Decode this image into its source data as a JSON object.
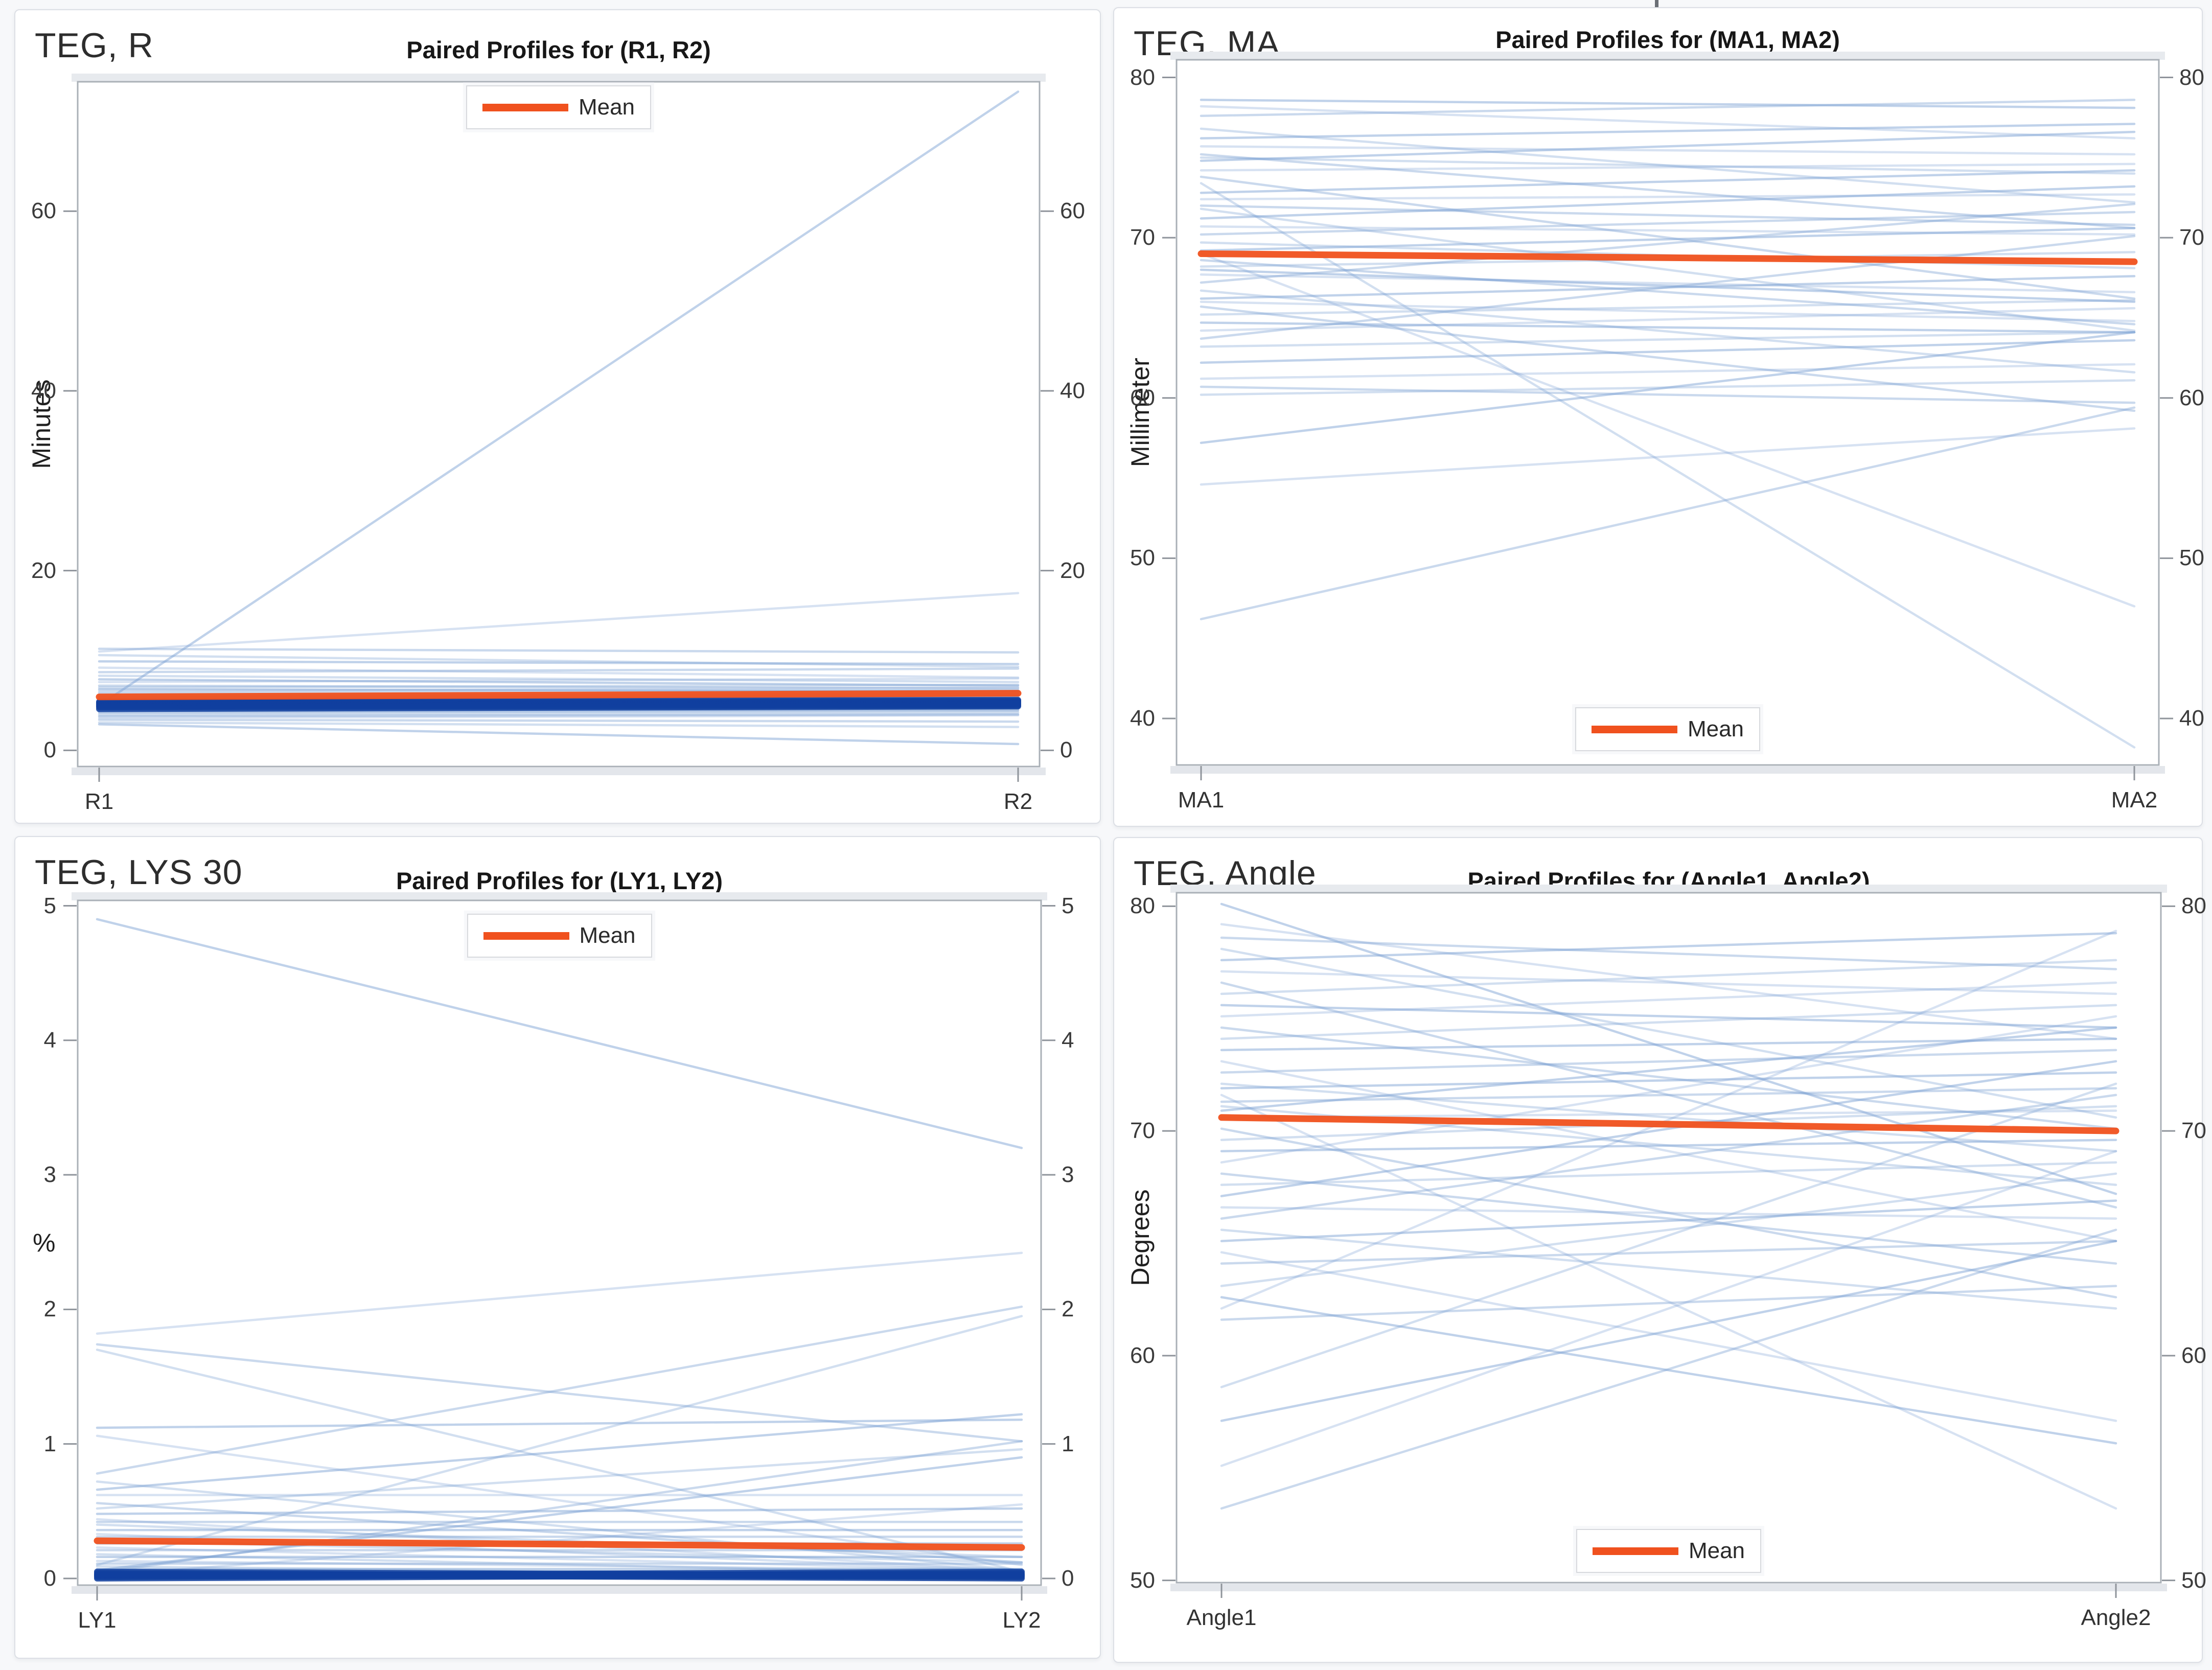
{
  "page": {
    "background": "#f7f8fa"
  },
  "colors": {
    "mean_line": "#f0511e",
    "profile_line": "#7ba0d3",
    "dense_profile_line": "#10409f",
    "frame": "#aab0b7",
    "tick": "#8f949b"
  },
  "chart_data": [
    {
      "type": "line",
      "panel_label": "TEG, R",
      "title": "Paired Profiles for (R1, R2)",
      "ylabel": "Minutes",
      "xcategories": [
        "R1",
        "R2"
      ],
      "yticks": [
        0,
        20,
        40,
        60
      ],
      "ylim": [
        -1.8,
        74.4
      ],
      "grid": false,
      "legend": {
        "label": "Mean",
        "position": "top"
      },
      "series": [
        {
          "name": "Mean",
          "values": [
            5.95,
            6.35
          ]
        }
      ],
      "profiles": [
        [
          5.0,
          73.3
        ],
        [
          11.0,
          17.5
        ],
        [
          11.3,
          10.9
        ],
        [
          10.6,
          9.3
        ],
        [
          9.9,
          9.6
        ],
        [
          9.2,
          8.1
        ],
        [
          8.7,
          9.1
        ],
        [
          8.3,
          7.6
        ],
        [
          7.9,
          7.2
        ],
        [
          7.6,
          8.0
        ],
        [
          7.2,
          6.9
        ],
        [
          7.0,
          7.3
        ],
        [
          6.8,
          6.6
        ],
        [
          6.6,
          7.0
        ],
        [
          6.4,
          6.7
        ],
        [
          6.2,
          6.4
        ],
        [
          6.0,
          6.2
        ],
        [
          5.9,
          6.4
        ],
        [
          5.8,
          6.0
        ],
        [
          5.7,
          6.1
        ],
        [
          5.6,
          5.9
        ],
        [
          5.5,
          5.7
        ],
        [
          5.4,
          5.8
        ],
        [
          5.3,
          5.6
        ],
        [
          5.2,
          5.5
        ],
        [
          5.1,
          5.3
        ],
        [
          5.0,
          5.2
        ],
        [
          4.9,
          5.1
        ],
        [
          4.8,
          5.0
        ],
        [
          4.7,
          4.9
        ],
        [
          4.6,
          4.8
        ],
        [
          4.5,
          4.7
        ],
        [
          4.4,
          4.6
        ],
        [
          4.3,
          4.5
        ],
        [
          4.2,
          4.4
        ],
        [
          4.0,
          4.2
        ],
        [
          3.8,
          4.0
        ],
        [
          3.6,
          3.9
        ],
        [
          3.4,
          3.2
        ],
        [
          3.1,
          2.6
        ],
        [
          2.9,
          0.7
        ]
      ],
      "dense_profiles": [
        [
          5.4,
          5.6
        ],
        [
          5.3,
          5.5
        ],
        [
          5.2,
          5.4
        ],
        [
          5.1,
          5.3
        ],
        [
          5.0,
          5.2
        ],
        [
          4.9,
          5.1
        ],
        [
          4.8,
          5.0
        ],
        [
          4.6,
          4.9
        ]
      ]
    },
    {
      "type": "line",
      "panel_label": "TEG, MA",
      "title": "Paired Profiles for (MA1, MA2)",
      "ylabel": "Millimeter",
      "xcategories": [
        "MA1",
        "MA2"
      ],
      "yticks": [
        40,
        50,
        60,
        70,
        80
      ],
      "ylim": [
        37.1,
        81.1
      ],
      "grid": false,
      "legend": {
        "label": "Mean",
        "position": "bottom"
      },
      "series": [
        {
          "name": "Mean",
          "values": [
            69.0,
            68.5
          ]
        }
      ],
      "profiles": [
        [
          78.6,
          78.1
        ],
        [
          78.2,
          76.2
        ],
        [
          77.6,
          78.6
        ],
        [
          76.8,
          72.2
        ],
        [
          76.2,
          77.1
        ],
        [
          75.7,
          75.2
        ],
        [
          75.2,
          70.6
        ],
        [
          75.0,
          74.0
        ],
        [
          74.8,
          76.6
        ],
        [
          74.2,
          74.6
        ],
        [
          73.8,
          66.2
        ],
        [
          73.4,
          38.2
        ],
        [
          72.8,
          74.2
        ],
        [
          72.4,
          72.7
        ],
        [
          72.0,
          70.8
        ],
        [
          71.8,
          64.2
        ],
        [
          71.2,
          73.2
        ],
        [
          70.7,
          70.2
        ],
        [
          70.2,
          71.6
        ],
        [
          69.7,
          68.1
        ],
        [
          69.2,
          70.6
        ],
        [
          69.0,
          47.0
        ],
        [
          68.6,
          64.6
        ],
        [
          68.2,
          69.1
        ],
        [
          68.0,
          66.0
        ],
        [
          67.7,
          66.6
        ],
        [
          67.2,
          72.1
        ],
        [
          66.7,
          61.6
        ],
        [
          66.2,
          67.6
        ],
        [
          66.0,
          64.8
        ],
        [
          65.7,
          59.2
        ],
        [
          65.2,
          66.1
        ],
        [
          64.7,
          64.1
        ],
        [
          64.2,
          65.6
        ],
        [
          63.7,
          70.1
        ],
        [
          63.2,
          64.1
        ],
        [
          62.2,
          63.6
        ],
        [
          61.2,
          62.1
        ],
        [
          60.7,
          59.7
        ],
        [
          60.2,
          61.1
        ],
        [
          57.2,
          64.1
        ],
        [
          54.6,
          58.1
        ],
        [
          46.2,
          59.4
        ]
      ],
      "dense_profiles": []
    },
    {
      "type": "line",
      "panel_label": "TEG, LYS 30",
      "title": "Paired Profiles for (LY1, LY2)",
      "ylabel": "%",
      "xcategories": [
        "LY1",
        "LY2"
      ],
      "yticks": [
        0,
        1,
        2,
        3,
        4,
        5
      ],
      "ylim": [
        -0.05,
        5.04
      ],
      "grid": false,
      "legend": {
        "label": "Mean",
        "position": "top"
      },
      "series": [
        {
          "name": "Mean",
          "values": [
            0.28,
            0.23
          ]
        }
      ],
      "profiles": [
        [
          4.9,
          3.2
        ],
        [
          1.82,
          2.42
        ],
        [
          1.74,
          1.02
        ],
        [
          1.7,
          0.05
        ],
        [
          1.12,
          1.18
        ],
        [
          1.06,
          0.1
        ],
        [
          0.78,
          2.02
        ],
        [
          0.72,
          0.06
        ],
        [
          0.66,
          1.22
        ],
        [
          0.62,
          0.62
        ],
        [
          0.56,
          0.12
        ],
        [
          0.52,
          0.96
        ],
        [
          0.48,
          0.52
        ],
        [
          0.44,
          0.06
        ],
        [
          0.42,
          0.42
        ],
        [
          0.4,
          0.16
        ],
        [
          0.36,
          0.36
        ],
        [
          0.33,
          0.06
        ],
        [
          0.31,
          0.31
        ],
        [
          0.28,
          0.12
        ],
        [
          0.26,
          0.26
        ],
        [
          0.23,
          0.06
        ],
        [
          0.21,
          0.21
        ],
        [
          0.18,
          0.03
        ],
        [
          0.16,
          0.16
        ],
        [
          0.13,
          0.06
        ],
        [
          0.11,
          0.11
        ],
        [
          0.09,
          0.02
        ],
        [
          0.07,
          0.07
        ],
        [
          0.05,
          0.01
        ],
        [
          0.04,
          1.02
        ],
        [
          0.1,
          1.95
        ],
        [
          0.06,
          0.9
        ],
        [
          0.02,
          0.55
        ]
      ],
      "dense_profiles": [
        [
          0.02,
          0.02
        ],
        [
          0.03,
          0.03
        ],
        [
          0.01,
          0.04
        ],
        [
          0.04,
          0.01
        ],
        [
          0.02,
          0.05
        ],
        [
          0.05,
          0.02
        ],
        [
          0.0,
          0.03
        ],
        [
          0.03,
          0.0
        ]
      ]
    },
    {
      "type": "line",
      "panel_label": "TEG, Angle",
      "title": "Paired Profiles for (Angle1, Angle2)",
      "ylabel": "Degrees",
      "xcategories": [
        "Angle1",
        "Angle2"
      ],
      "yticks": [
        50,
        60,
        70,
        80
      ],
      "ylim": [
        49.9,
        80.6
      ],
      "grid": false,
      "legend": {
        "label": "Mean",
        "position": "bottom"
      },
      "series": [
        {
          "name": "Mean",
          "values": [
            70.6,
            70.0
          ]
        }
      ],
      "profiles": [
        [
          80.1,
          67.2
        ],
        [
          79.2,
          74.1
        ],
        [
          78.6,
          77.2
        ],
        [
          78.1,
          70.6
        ],
        [
          77.6,
          78.8
        ],
        [
          77.1,
          76.1
        ],
        [
          76.6,
          66.6
        ],
        [
          76.1,
          77.6
        ],
        [
          75.6,
          74.6
        ],
        [
          75.1,
          76.6
        ],
        [
          74.6,
          70.1
        ],
        [
          74.1,
          75.6
        ],
        [
          73.6,
          74.1
        ],
        [
          73.1,
          65.1
        ],
        [
          72.6,
          73.6
        ],
        [
          72.1,
          69.1
        ],
        [
          71.9,
          72.6
        ],
        [
          71.6,
          53.2
        ],
        [
          71.3,
          71.9
        ],
        [
          71.1,
          67.6
        ],
        [
          70.9,
          74.6
        ],
        [
          70.6,
          70.9
        ],
        [
          70.1,
          62.6
        ],
        [
          69.6,
          71.1
        ],
        [
          69.1,
          69.6
        ],
        [
          68.6,
          75.1
        ],
        [
          68.1,
          64.1
        ],
        [
          67.6,
          68.6
        ],
        [
          67.1,
          73.1
        ],
        [
          66.6,
          66.1
        ],
        [
          66.1,
          71.6
        ],
        [
          65.6,
          62.1
        ],
        [
          65.1,
          66.9
        ],
        [
          64.6,
          57.1
        ],
        [
          64.1,
          65.1
        ],
        [
          63.1,
          68.1
        ],
        [
          62.6,
          56.1
        ],
        [
          62.1,
          78.9
        ],
        [
          61.6,
          63.1
        ],
        [
          58.6,
          72.1
        ],
        [
          57.1,
          65.1
        ],
        [
          55.1,
          69.1
        ],
        [
          53.2,
          65.6
        ]
      ],
      "dense_profiles": []
    }
  ]
}
